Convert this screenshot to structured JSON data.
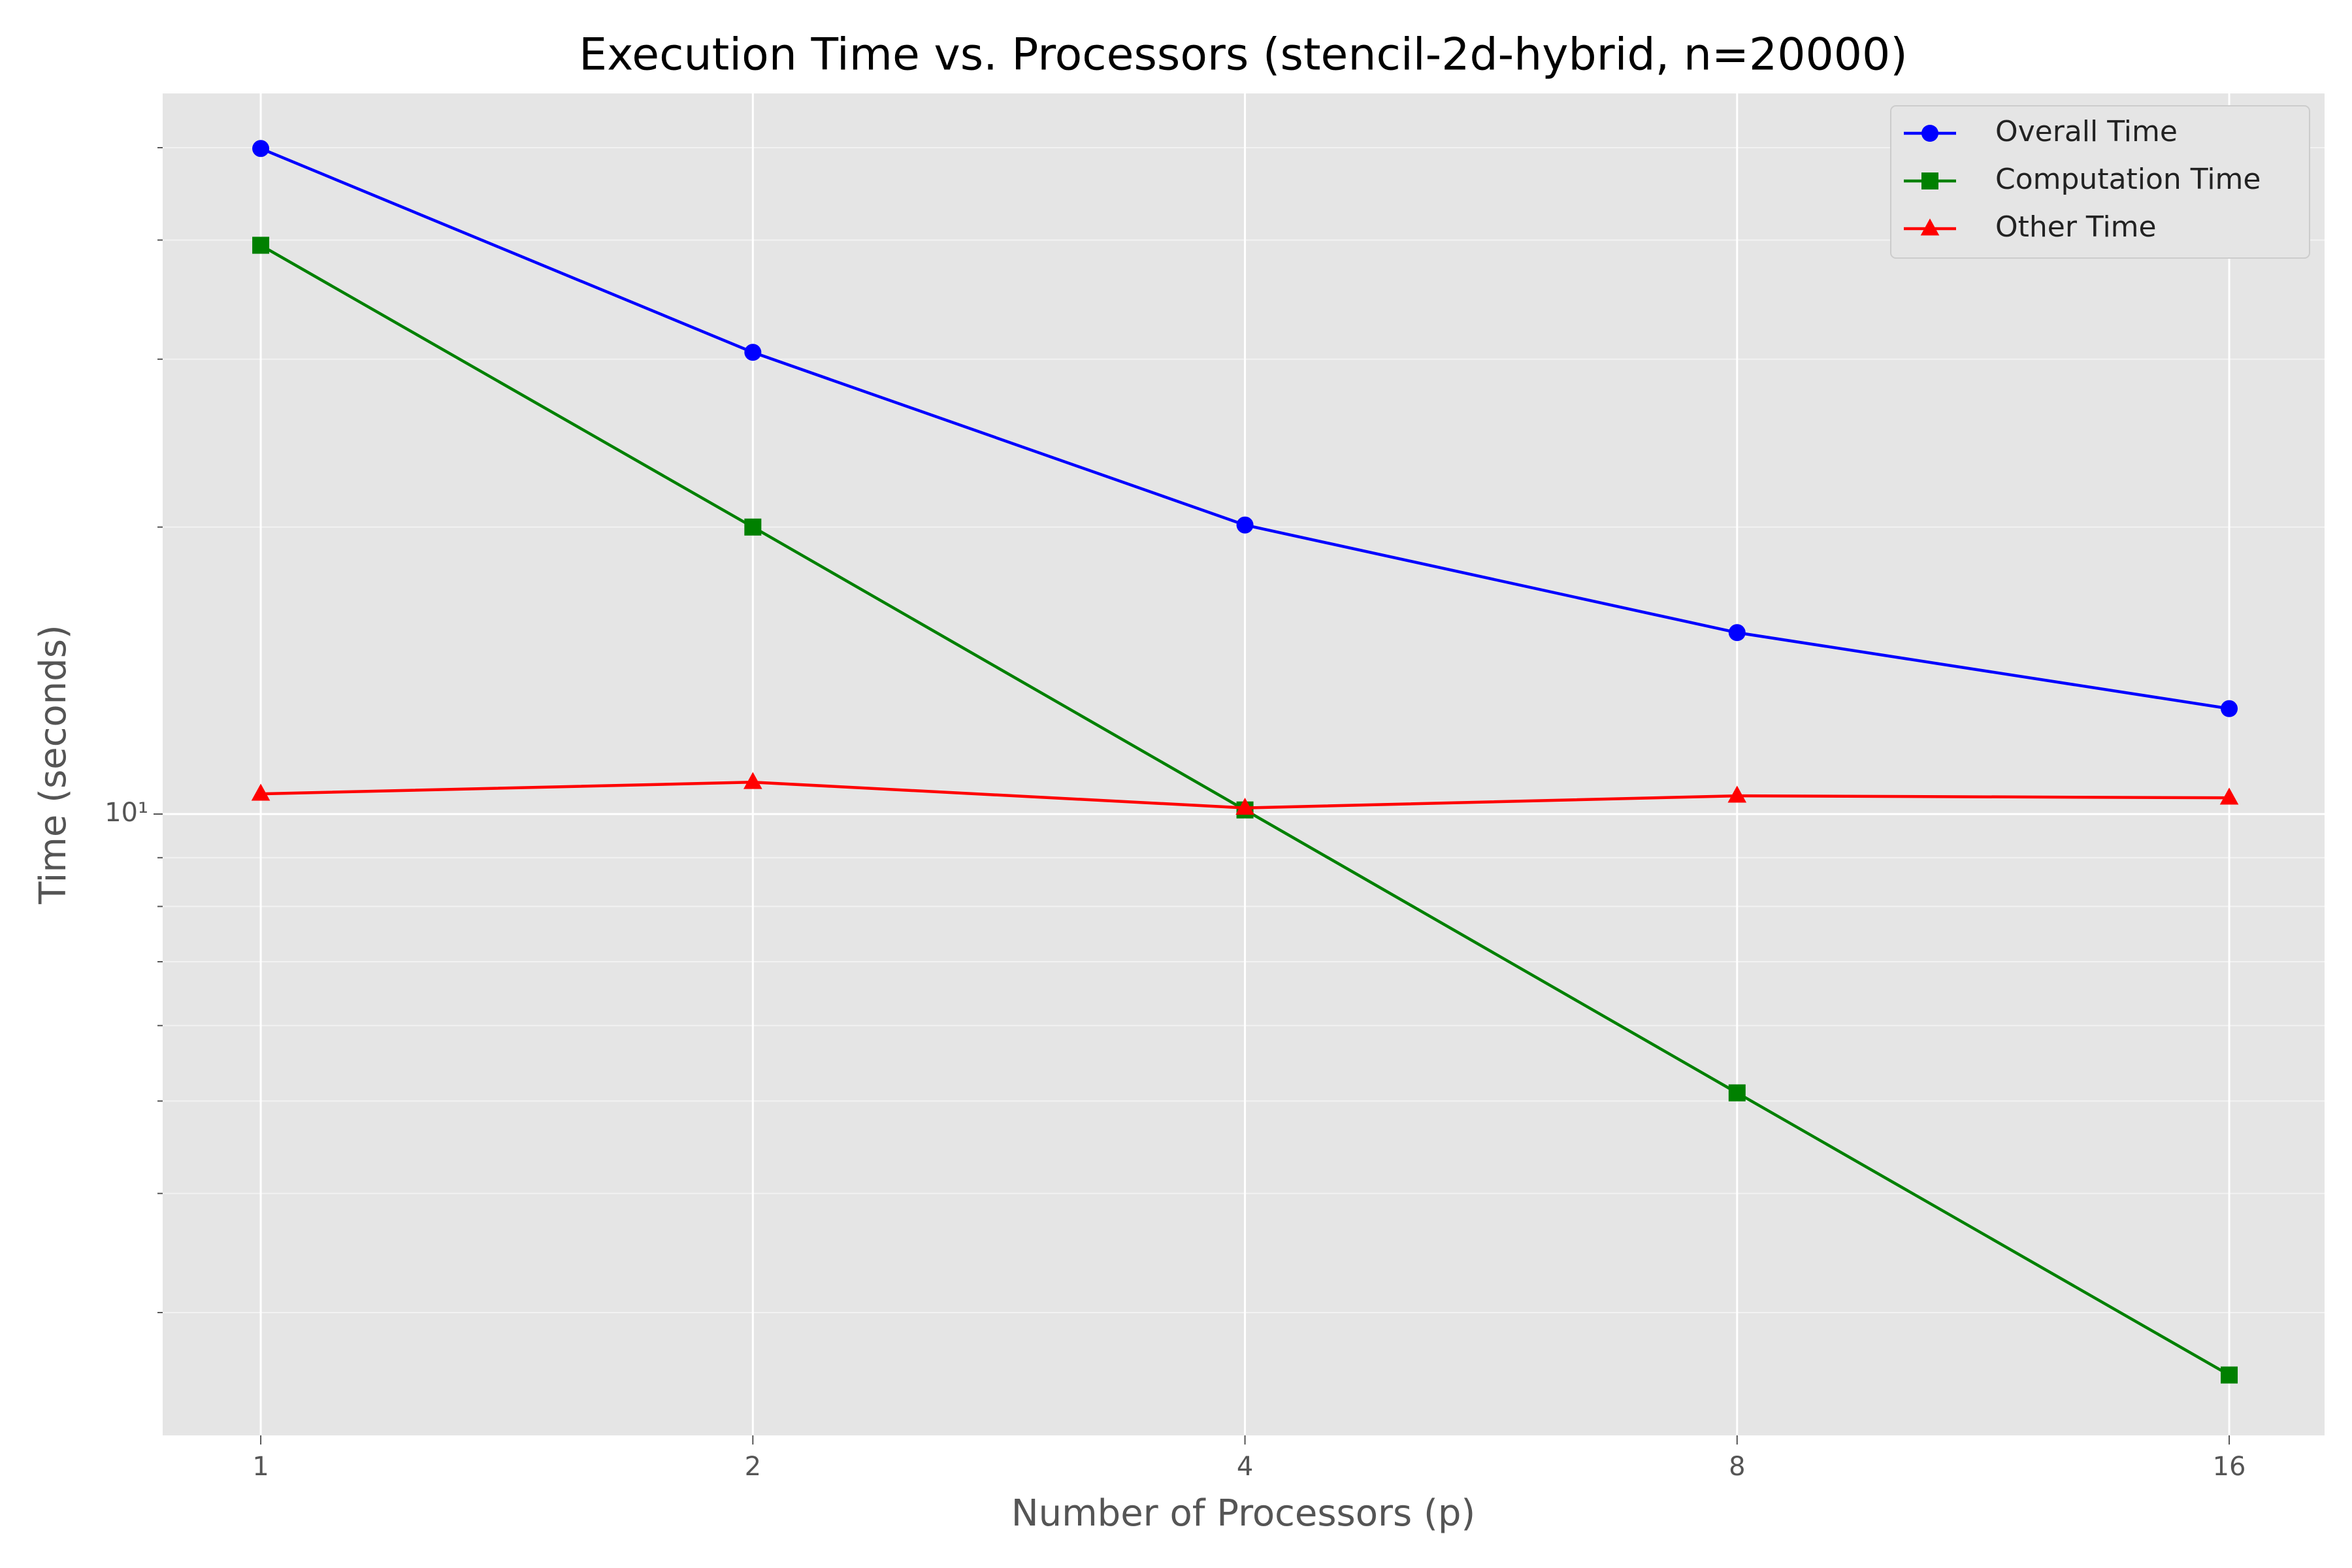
{
  "chart_data": {
    "type": "line",
    "title": "Execution Time vs. Processors (stencil-2d-hybrid, n=20000)",
    "xlabel": "Number of Processors (p)",
    "ylabel": "Time (seconds)",
    "x": [
      1,
      2,
      4,
      8,
      16
    ],
    "xscale": "log",
    "xbase": 2,
    "yscale": "log",
    "xlim": [
      0.871,
      18.3
    ],
    "xticks": [
      1,
      2,
      4,
      8,
      16
    ],
    "ylim": [
      2.23,
      57.0
    ],
    "yticks": [
      {
        "value": 10,
        "label": "10¹"
      }
    ],
    "yticks_minor": [
      3,
      4,
      5,
      6,
      7,
      8,
      9,
      20,
      30,
      40,
      50
    ],
    "grid": true,
    "legend": "upper right",
    "series": [
      {
        "name": "Overall Time",
        "color": "#0000ff",
        "marker": "circle",
        "values": [
          49.9,
          30.5,
          20.1,
          15.5,
          12.9
        ]
      },
      {
        "name": "Computation Time",
        "color": "#008000",
        "marker": "square",
        "values": [
          39.5,
          20.0,
          10.1,
          5.1,
          2.58
        ]
      },
      {
        "name": "Other Time",
        "color": "#ff0000",
        "marker": "triangle",
        "values": [
          10.5,
          10.8,
          10.15,
          10.45,
          10.4
        ]
      }
    ]
  }
}
